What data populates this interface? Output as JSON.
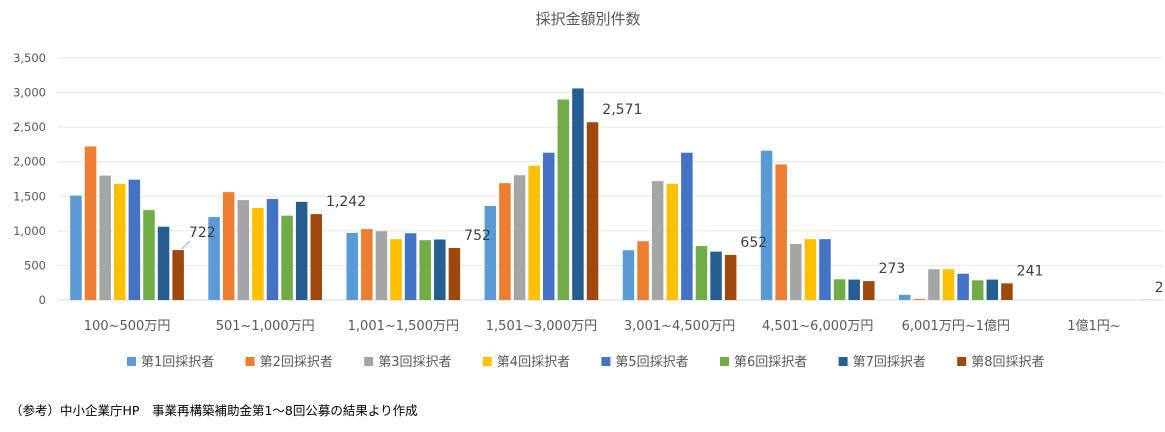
{
  "chart_data": {
    "type": "bar",
    "title": "採択金額別件数",
    "categories": [
      "100~500万円",
      "501~1,000万円",
      "1,001~1,500万円",
      "1,501~3,000万円",
      "3,001~4,500万円",
      "4,501~6,000万円",
      "6,001万円~1億円",
      "1億1円~"
    ],
    "ylim": [
      0,
      3500
    ],
    "yticks": [
      "0",
      "500",
      "1,000",
      "1,500",
      "2,000",
      "2,500",
      "3,000",
      "3,500"
    ],
    "grid": true,
    "legend": "bottom",
    "series": [
      {
        "name": "第1回採択者",
        "color": "#5B9BD5",
        "values": [
          1510,
          1200,
          970,
          1360,
          720,
          2160,
          75,
          0
        ]
      },
      {
        "name": "第2回採択者",
        "color": "#ED7D31",
        "values": [
          2220,
          1560,
          1025,
          1690,
          850,
          1960,
          15,
          0
        ]
      },
      {
        "name": "第3回採択者",
        "color": "#A5A5A5",
        "values": [
          1800,
          1445,
          995,
          1805,
          1720,
          810,
          445,
          0
        ]
      },
      {
        "name": "第4回採択者",
        "color": "#FFC000",
        "values": [
          1680,
          1330,
          880,
          1940,
          1680,
          880,
          445,
          0
        ]
      },
      {
        "name": "第5回採択者",
        "color": "#4472C4",
        "values": [
          1740,
          1460,
          965,
          2130,
          2130,
          880,
          380,
          0
        ]
      },
      {
        "name": "第6回採択者",
        "color": "#70AD47",
        "values": [
          1300,
          1220,
          865,
          2900,
          780,
          300,
          285,
          0
        ]
      },
      {
        "name": "第7回採択者",
        "color": "#255E91",
        "values": [
          1060,
          1420,
          875,
          3060,
          700,
          295,
          295,
          0
        ]
      },
      {
        "name": "第8回採択者",
        "color": "#9E480E",
        "values": [
          722,
          1242,
          752,
          2571,
          652,
          273,
          241,
          2
        ]
      }
    ],
    "data_labels": [
      "722",
      "1,242",
      "752",
      "2,571",
      "652",
      "273",
      "241",
      "2"
    ]
  },
  "footnote": "（参考）中小企業庁HP　事業再構築補助金第1～8回公募の結果より作成"
}
